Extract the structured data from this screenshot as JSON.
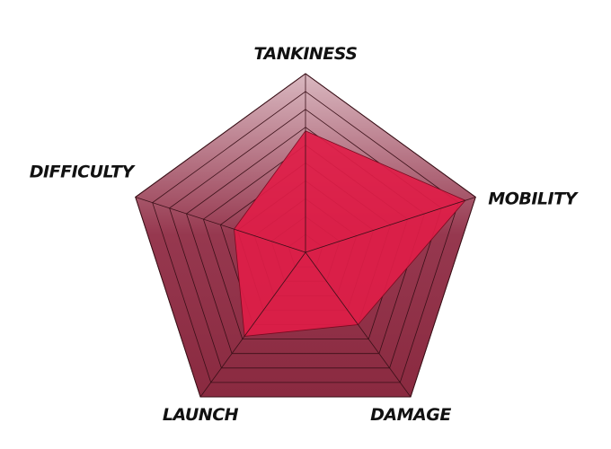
{
  "chart_data": {
    "type": "radar",
    "axes": [
      "TANKINESS",
      "MOBILITY",
      "DAMAGE",
      "LAUNCH",
      "DIFFICULTY"
    ],
    "values": [
      6.8,
      9.4,
      5.0,
      5.8,
      4.2
    ],
    "max": 10,
    "rings": 10,
    "grid": true
  },
  "colors": {
    "background_top": "#d9b8c0",
    "background_mid": "#96384f",
    "background_bottom": "#8a2a40",
    "grid_line": "#3a1018",
    "data_fill": "#e01d48",
    "data_stroke": "#7a0a20"
  }
}
